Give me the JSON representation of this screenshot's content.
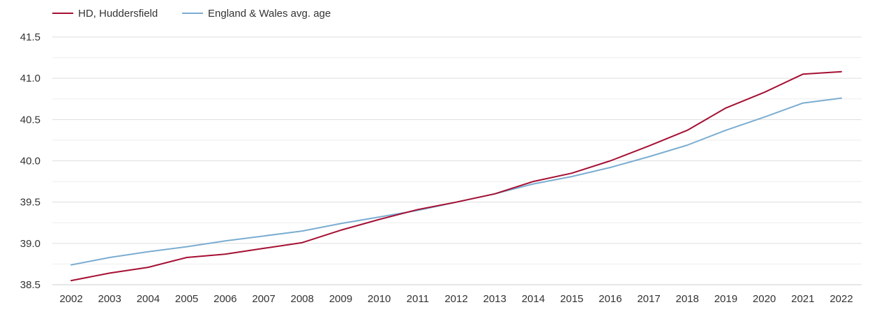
{
  "chart_data": {
    "type": "line",
    "categories": [
      "2002",
      "2003",
      "2004",
      "2005",
      "2006",
      "2007",
      "2008",
      "2009",
      "2010",
      "2011",
      "2012",
      "2013",
      "2014",
      "2015",
      "2016",
      "2017",
      "2018",
      "2019",
      "2020",
      "2021",
      "2022"
    ],
    "series": [
      {
        "name": "HD, Huddersfield",
        "color": "#a50f33",
        "values": [
          38.55,
          38.64,
          38.71,
          38.83,
          38.87,
          38.94,
          39.01,
          39.16,
          39.29,
          39.41,
          39.5,
          39.6,
          39.75,
          39.85,
          40.0,
          40.18,
          40.37,
          40.64,
          40.83,
          41.05,
          41.08
        ]
      },
      {
        "name": "England & Wales avg. age",
        "color": "#7badd1",
        "values": [
          38.74,
          38.83,
          38.9,
          38.96,
          39.03,
          39.09,
          39.15,
          39.24,
          39.32,
          39.4,
          39.5,
          39.6,
          39.72,
          39.81,
          39.92,
          40.05,
          40.19,
          40.37,
          40.53,
          40.7,
          40.76
        ]
      }
    ],
    "yticks": [
      "38.5",
      "39.0",
      "39.5",
      "40.0",
      "40.5",
      "41.0",
      "41.5"
    ],
    "ylim": [
      38.5,
      41.5
    ],
    "grid": true,
    "legend_position": "top-left"
  }
}
